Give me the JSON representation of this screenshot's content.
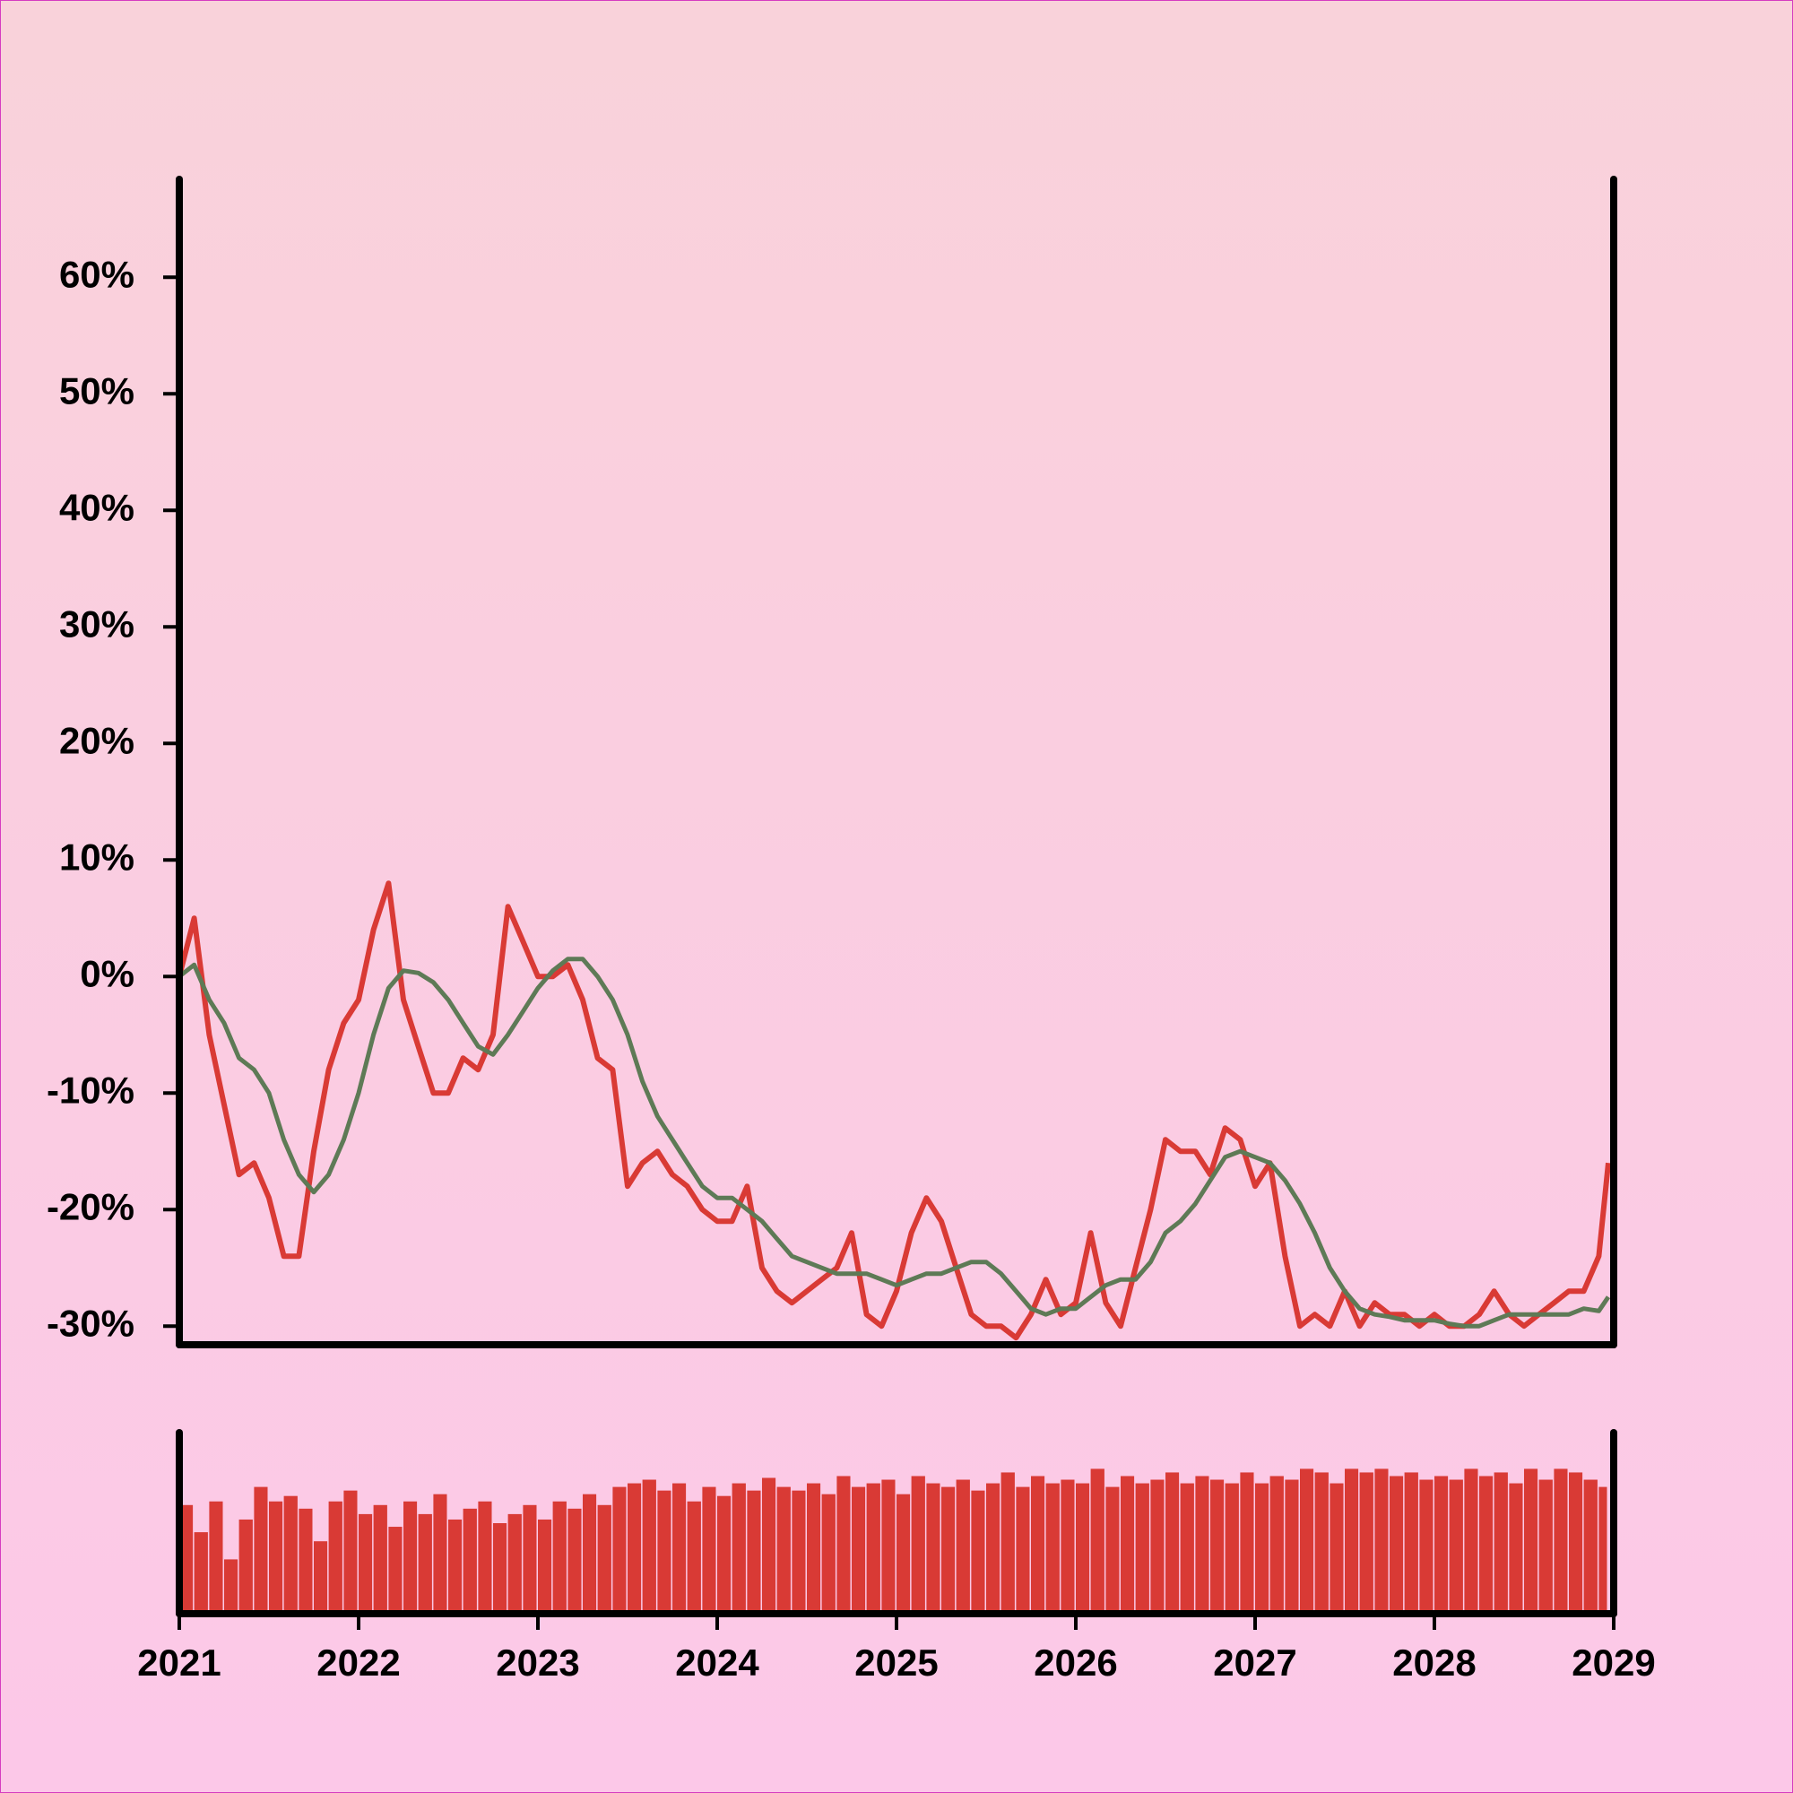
{
  "chart_data": {
    "type": "line",
    "x": [
      2021,
      2021.083,
      2021.167,
      2021.25,
      2021.333,
      2021.417,
      2021.5,
      2021.583,
      2021.667,
      2021.75,
      2021.833,
      2021.917,
      2022,
      2022.083,
      2022.167,
      2022.25,
      2022.333,
      2022.417,
      2022.5,
      2022.583,
      2022.667,
      2022.75,
      2022.833,
      2022.917,
      2023,
      2023.083,
      2023.167,
      2023.25,
      2023.333,
      2023.417,
      2023.5,
      2023.583,
      2023.667,
      2023.75,
      2023.833,
      2023.917,
      2024,
      2024.083,
      2024.167,
      2024.25,
      2024.333,
      2024.417,
      2024.5,
      2024.583,
      2024.667,
      2024.75,
      2024.833,
      2024.917,
      2025,
      2025.083,
      2025.167,
      2025.25,
      2025.333,
      2025.417,
      2025.5,
      2025.583,
      2025.667,
      2025.75,
      2025.833,
      2025.917,
      2026,
      2026.083,
      2026.167,
      2026.25,
      2026.333,
      2026.417,
      2026.5,
      2026.583,
      2026.667,
      2026.75,
      2026.833,
      2026.917,
      2027,
      2027.083,
      2027.167,
      2027.25,
      2027.333,
      2027.417,
      2027.5,
      2027.583,
      2027.667,
      2027.75,
      2027.833,
      2027.917,
      2028,
      2028.083,
      2028.167,
      2028.25,
      2028.333,
      2028.417,
      2028.5,
      2028.583,
      2028.667,
      2028.75,
      2028.833,
      2028.917,
      2028.97
    ],
    "series": [
      {
        "color": "#d93a35",
        "values": [
          0,
          5,
          -5,
          -11,
          -17,
          -16,
          -19,
          -24,
          -24,
          -15,
          -8,
          -4,
          -2,
          4,
          8,
          -2,
          -6,
          -10,
          -10,
          -7,
          -8,
          -5,
          6,
          3,
          0,
          0,
          1,
          -2,
          -7,
          -8,
          -18,
          -16,
          -15,
          -17,
          -18,
          -20,
          -21,
          -21,
          -18,
          -25,
          -27,
          -28,
          -27,
          -26,
          -25,
          -22,
          -29,
          -30,
          -27,
          -22,
          -19,
          -21,
          -25,
          -29,
          -30,
          -30,
          -31,
          -29,
          -26,
          -29,
          -28,
          -22,
          -28,
          -30,
          -25,
          -20,
          -14,
          -15,
          -15,
          -17,
          -13,
          -14,
          -18,
          -16,
          -24,
          -30,
          -29,
          -30,
          -27,
          -30,
          -28,
          -29,
          -29,
          -30,
          -29,
          -30,
          -30,
          -29,
          -27,
          -29,
          -30,
          -29,
          -28,
          -27,
          -27,
          -24,
          -16
        ]
      },
      {
        "color": "#5e7a56",
        "values": [
          0,
          1,
          -2,
          -4,
          -7,
          -8,
          -10,
          -14,
          -17,
          -18.5,
          -17,
          -14,
          -10,
          -5,
          -1,
          0.5,
          0.3,
          -0.5,
          -2,
          -4,
          -6,
          -6.7,
          -5,
          -3,
          -1,
          0.5,
          1.5,
          1.5,
          0,
          -2,
          -5,
          -9,
          -12,
          -14,
          -16,
          -18,
          -19,
          -19,
          -20,
          -21,
          -22.5,
          -24,
          -24.5,
          -25,
          -25.5,
          -25.5,
          -25.5,
          -26,
          -26.5,
          -26,
          -25.5,
          -25.5,
          -25,
          -24.5,
          -24.5,
          -25.5,
          -27,
          -28.5,
          -29,
          -28.5,
          -28.5,
          -27.5,
          -26.5,
          -26,
          -26,
          -24.5,
          -22,
          -21,
          -19.5,
          -17.5,
          -15.5,
          -15,
          -15.5,
          -16,
          -17.5,
          -19.5,
          -22,
          -25,
          -27,
          -28.5,
          -29,
          -29.2,
          -29.5,
          -29.5,
          -29.5,
          -29.8,
          -30,
          -30,
          -29.5,
          -29,
          -29,
          -29,
          -29,
          -29,
          -28.5,
          -28.7,
          -27.5
        ]
      }
    ],
    "xlim": [
      2021,
      2029
    ],
    "xticks": [
      2021,
      2022,
      2023,
      2024,
      2025,
      2026,
      2027,
      2028,
      2029
    ],
    "ylim": [
      -31.6,
      68.4
    ],
    "yticks": [
      {
        "value": -30,
        "label": "-30%"
      },
      {
        "value": -20,
        "label": "-20%"
      },
      {
        "value": -10,
        "label": "-10%"
      },
      {
        "value": 0,
        "label": "0%"
      },
      {
        "value": 10,
        "label": "10%"
      },
      {
        "value": 20,
        "label": "20%"
      },
      {
        "value": 30,
        "label": "30%"
      },
      {
        "value": 40,
        "label": "40%"
      },
      {
        "value": 50,
        "label": "50%"
      },
      {
        "value": 60,
        "label": "60%"
      }
    ],
    "volume": {
      "type": "bar",
      "color": "#d93a35",
      "ylim": [
        0,
        100
      ],
      "bins": [
        2021,
        2021.083,
        2021.167,
        2021.25,
        2021.333,
        2021.417,
        2021.5,
        2021.583,
        2021.667,
        2021.75,
        2021.833,
        2021.917,
        2022,
        2022.083,
        2022.167,
        2022.25,
        2022.333,
        2022.417,
        2022.5,
        2022.583,
        2022.667,
        2022.75,
        2022.833,
        2022.917,
        2023,
        2023.083,
        2023.167,
        2023.25,
        2023.333,
        2023.417,
        2023.5,
        2023.583,
        2023.667,
        2023.75,
        2023.833,
        2023.917,
        2024,
        2024.083,
        2024.167,
        2024.25,
        2024.333,
        2024.417,
        2024.5,
        2024.583,
        2024.667,
        2024.75,
        2024.833,
        2024.917,
        2025,
        2025.083,
        2025.167,
        2025.25,
        2025.333,
        2025.417,
        2025.5,
        2025.583,
        2025.667,
        2025.75,
        2025.833,
        2025.917,
        2026,
        2026.083,
        2026.167,
        2026.25,
        2026.333,
        2026.417,
        2026.5,
        2026.583,
        2026.667,
        2026.75,
        2026.833,
        2026.917,
        2027,
        2027.083,
        2027.167,
        2027.25,
        2027.333,
        2027.417,
        2027.5,
        2027.583,
        2027.667,
        2027.75,
        2027.833,
        2027.917,
        2028,
        2028.083,
        2028.167,
        2028.25,
        2028.333,
        2028.417,
        2028.5,
        2028.583,
        2028.667,
        2028.75,
        2028.833,
        2028.917,
        2028.97
      ],
      "values": [
        60,
        45,
        62,
        30,
        52,
        70,
        62,
        65,
        58,
        40,
        62,
        68,
        55,
        60,
        48,
        62,
        55,
        66,
        52,
        58,
        62,
        50,
        55,
        60,
        52,
        62,
        58,
        66,
        60,
        70,
        72,
        74,
        68,
        72,
        62,
        70,
        65,
        72,
        68,
        75,
        70,
        68,
        72,
        66,
        76,
        70,
        72,
        74,
        66,
        76,
        72,
        70,
        74,
        68,
        72,
        78,
        70,
        76,
        72,
        74,
        72,
        80,
        70,
        76,
        72,
        74,
        78,
        72,
        76,
        74,
        72,
        78,
        72,
        76,
        74,
        80,
        78,
        72,
        80,
        78,
        80,
        76,
        78,
        74,
        76,
        74,
        80,
        76,
        78,
        72,
        80,
        74,
        80,
        78,
        74,
        70
      ]
    }
  }
}
